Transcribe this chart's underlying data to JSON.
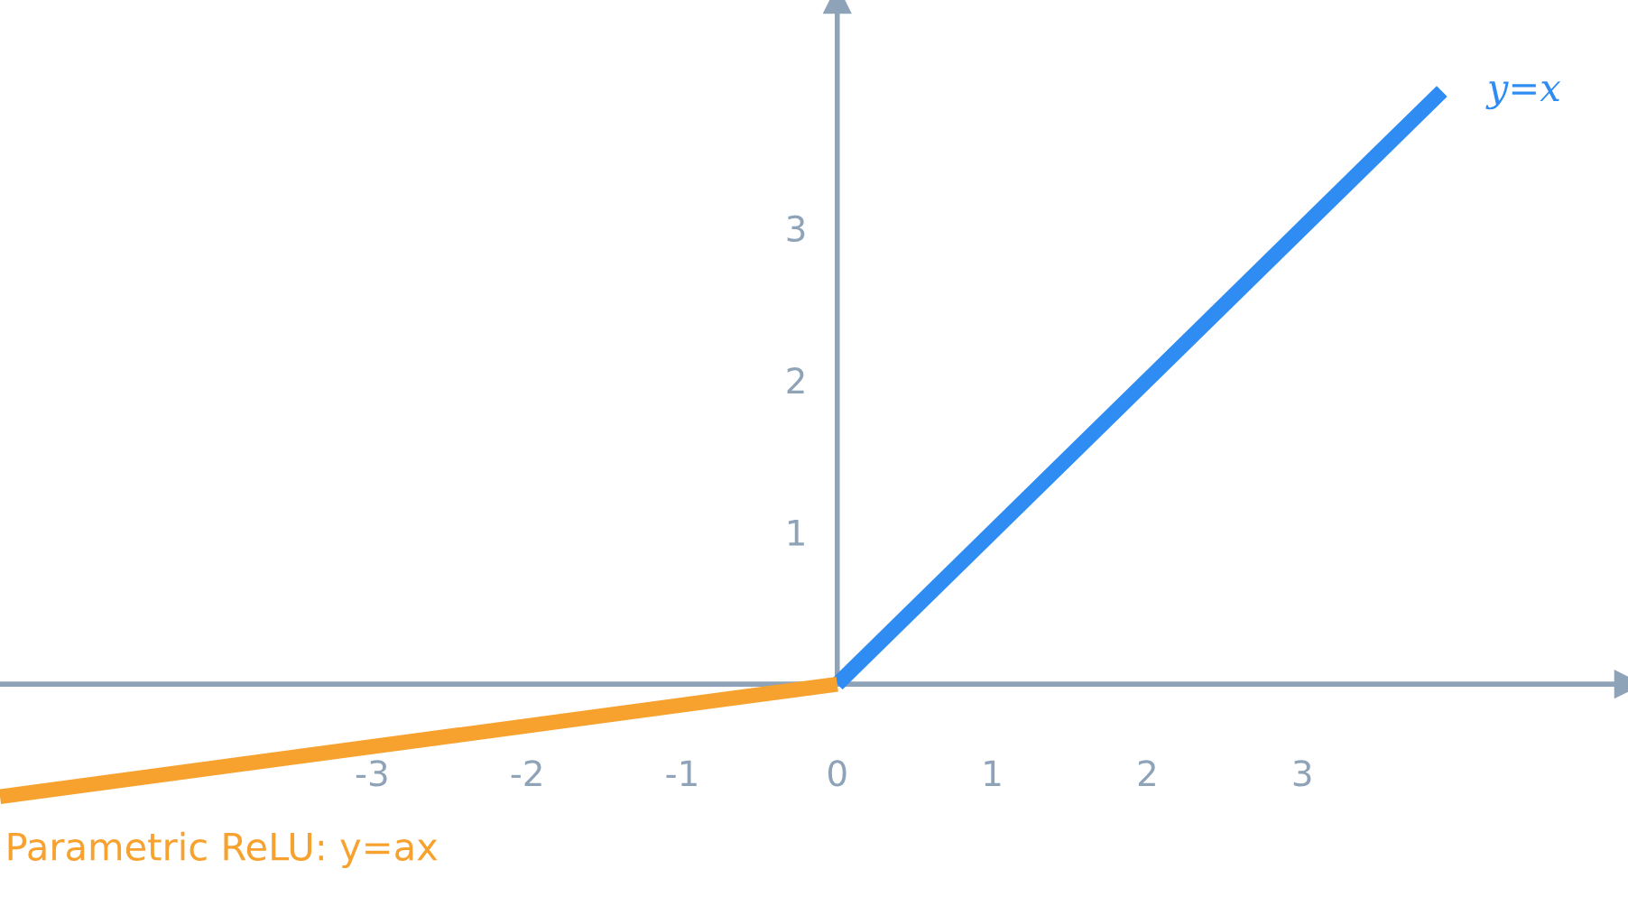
{
  "chart_data": {
    "type": "line",
    "series": [
      {
        "name": "y=x",
        "color": "#2e8cf2",
        "x": [
          0,
          3.9
        ],
        "values": [
          0,
          3.9
        ]
      },
      {
        "name": "Parametric ReLU: y=ax",
        "color": "#f7a12e",
        "x": [
          -5.4,
          0
        ],
        "values": [
          -0.74,
          0
        ]
      }
    ],
    "xlim": [
      -5.4,
      5.1
    ],
    "ylim": [
      -1.4,
      4.5
    ],
    "xticks": [
      -3,
      -2,
      -1,
      0,
      1,
      2,
      3
    ],
    "yticks": [
      1,
      2,
      3
    ],
    "line_style": "solid",
    "marker": "none"
  }
}
